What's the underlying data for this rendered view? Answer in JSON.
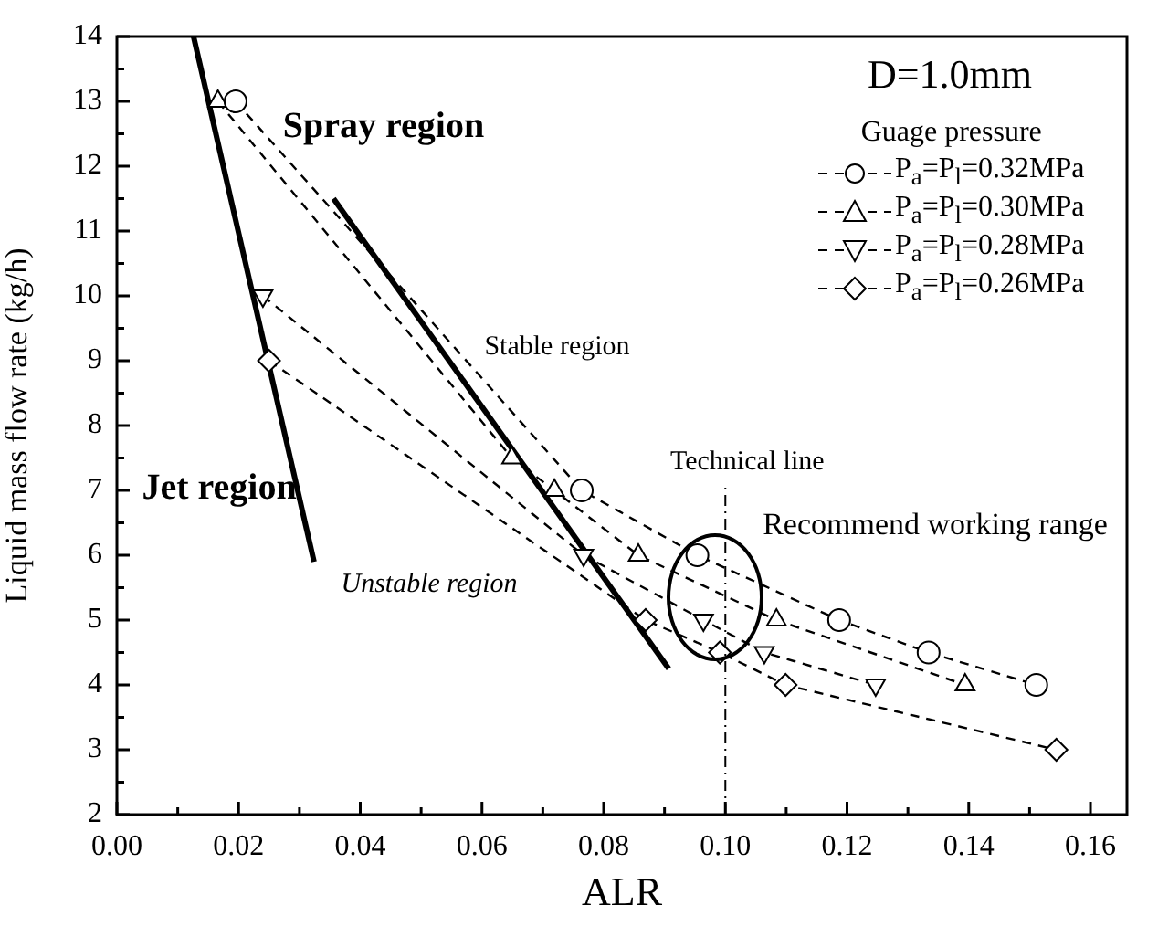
{
  "chart_data": {
    "type": "line",
    "xlabel": "ALR",
    "ylabel": "Liquid mass flow rate (kg/h)",
    "legend_title": "Guage pressure",
    "legend": "top right",
    "line_style": "dashed",
    "grid": false,
    "xlim": [
      0,
      0.166
    ],
    "xticks": [
      {
        "value": 0,
        "label": "0.00"
      },
      {
        "value": 0.01,
        "label": null
      },
      {
        "value": 0.02,
        "label": "0.02"
      },
      {
        "value": 0.03,
        "label": null
      },
      {
        "value": 0.04,
        "label": "0.04"
      },
      {
        "value": 0.05,
        "label": null
      },
      {
        "value": 0.06,
        "label": "0.06"
      },
      {
        "value": 0.07,
        "label": null
      },
      {
        "value": 0.08,
        "label": "0.08"
      },
      {
        "value": 0.09,
        "label": null
      },
      {
        "value": 0.1,
        "label": "0.10"
      },
      {
        "value": 0.11,
        "label": null
      },
      {
        "value": 0.12,
        "label": "0.12"
      },
      {
        "value": 0.13,
        "label": null
      },
      {
        "value": 0.14,
        "label": "0.14"
      },
      {
        "value": 0.15,
        "label": null
      },
      {
        "value": 0.16,
        "label": "0.16"
      }
    ],
    "ylim": [
      2,
      14
    ],
    "yticks": [
      2,
      {
        "value": 2.5,
        "label": null
      },
      3,
      {
        "value": 3.5,
        "label": null
      },
      4,
      {
        "value": 4.5,
        "label": null
      },
      5,
      {
        "value": 5.5,
        "label": null
      },
      6,
      {
        "value": 6.5,
        "label": null
      },
      7,
      {
        "value": 7.5,
        "label": null
      },
      8,
      {
        "value": 8.5,
        "label": null
      },
      9,
      {
        "value": 9.5,
        "label": null
      },
      10,
      {
        "value": 10.5,
        "label": null
      },
      11,
      {
        "value": 11.5,
        "label": null
      },
      12,
      {
        "value": 12.5,
        "label": null
      },
      13,
      {
        "value": 13.5,
        "label": null
      },
      14
    ],
    "series": [
      {
        "name": "P$_{a}$=P$_{l}$=0.32MPa",
        "color": "#000000",
        "marker": "circle",
        "x": [
          0.0195,
          0.0764,
          0.0954,
          0.1187,
          0.1334,
          0.1511
        ],
        "values": [
          13,
          7,
          6,
          5,
          4.5,
          4
        ]
      },
      {
        "name": "P$_{a}$=P$_{l}$=0.30MPa",
        "color": "#000000",
        "marker": "triangle",
        "x": [
          0.0166,
          0.0649,
          0.0719,
          0.0857,
          0.1084,
          0.1394
        ],
        "values": [
          13,
          7.5,
          7,
          6,
          5,
          4
        ]
      },
      {
        "name": "P$_{a}$=P$_{l}$=0.28MPa",
        "color": "#000000",
        "marker": "triangle-down",
        "x": [
          0.024,
          0.0767,
          0.0964,
          0.1064,
          0.1247
        ],
        "values": [
          10,
          6,
          5,
          4.5,
          4
        ]
      },
      {
        "name": "P$_{a}$=P$_{l}$=0.26MPa",
        "color": "#000000",
        "marker": "diamond",
        "x": [
          0.025,
          0.0869,
          0.0991,
          0.1099,
          0.1544
        ],
        "values": [
          9,
          5,
          4.5,
          4,
          3
        ]
      },
      {
        "type": "line",
        "color": "#000000",
        "marker": "none",
        "line_style": "solid",
        "x": [
          0.0126,
          0.0324
        ],
        "values": [
          14,
          5.9
        ]
      },
      {
        "type": "line",
        "color": "#000000",
        "marker": "none",
        "line_style": "solid",
        "x": [
          0.0356,
          0.0907
        ],
        "values": [
          11.5,
          4.25
        ]
      }
    ],
    "ref_lines": [
      {
        "axis": "x",
        "value": 0.1,
        "label": "Technical line",
        "line_style": "dashdot",
        "color": "#000000"
      }
    ],
    "annotations": [
      "D=1.0mm",
      "Spray region",
      "Jet region",
      "Stable region",
      "Unstable region",
      "Recommend working range"
    ]
  }
}
